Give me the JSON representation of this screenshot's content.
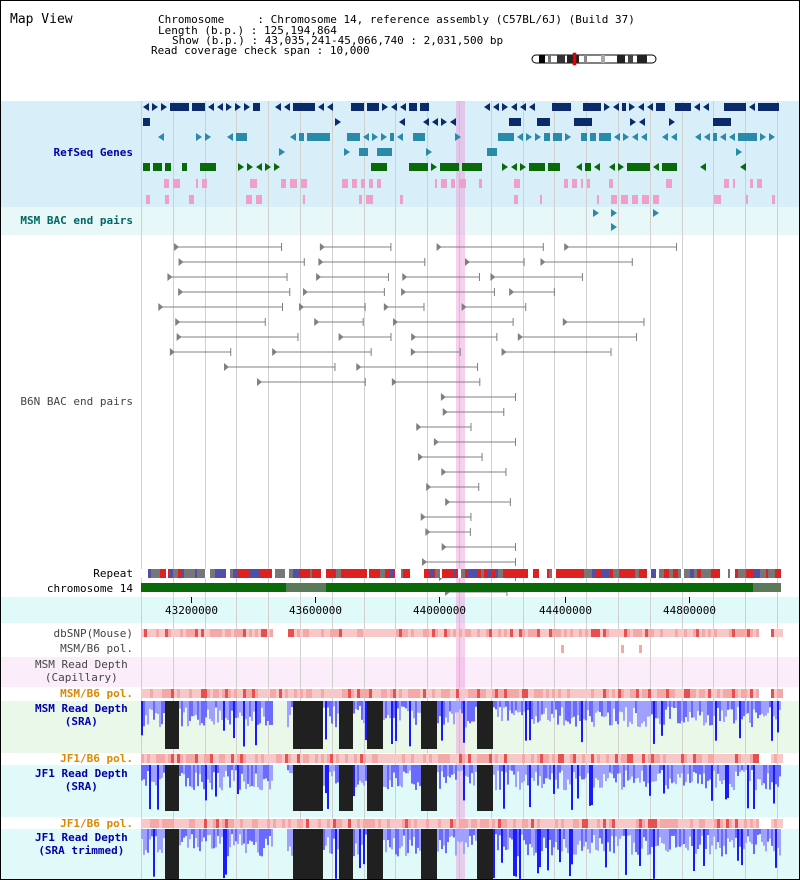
{
  "map_title": "Map View",
  "info": {
    "chromosome_label": "Chromosome",
    "chromosome_value": "Chromosome 14, reference assembly (C57BL/6J) (Build 37)",
    "length_label": "Length (b.p.)",
    "length_value": "125,194,864",
    "show_label": "Show (b.p.)",
    "show_value": "43,035,241-45,066,740 : 2,031,500 bp",
    "span_label": "Read coverage check span",
    "span_value": "10,000"
  },
  "tracks": {
    "refseq": "RefSeq Genes",
    "msm_bac": "MSM BAC end pairs",
    "b6n_bac": "B6N BAC end pairs",
    "repeat": "Repeat",
    "chromosome": "chromosome 14",
    "dbsnp": "dbSNP(Mouse)",
    "msm_b6_pol_1": "MSM/B6 pol.",
    "msm_depth_cap_1": "MSM Read Depth",
    "msm_depth_cap_2": "(Capillary)",
    "msm_b6_pol_2": "MSM/B6 pol.",
    "msm_depth_sra_1": "MSM Read Depth",
    "msm_depth_sra_2": "(SRA)",
    "jf1_b6_pol_1": "JF1/B6 pol.",
    "jf1_depth_sra_1": "JF1 Read Depth",
    "jf1_depth_sra_2": "(SRA)",
    "jf1_b6_pol_2": "JF1/B6 pol.",
    "jf1_depth_trim_1": "JF1 Read Depth",
    "jf1_depth_trim_2": "(SRA trimmed)"
  },
  "axis": {
    "ticks": [
      {
        "label": "43200000",
        "x": 43200000
      },
      {
        "label": "43600000",
        "x": 43600000
      },
      {
        "label": "44000000",
        "x": 44000000
      },
      {
        "label": "44400000",
        "x": 44400000
      },
      {
        "label": "44800000",
        "x": 44800000
      }
    ]
  },
  "colors": {
    "refseq_bg": "#d8eef8",
    "msm_bac_bg": "#e8f8f8",
    "gene_dark": "#0a2a6a",
    "gene_teal": "#2a8aaa",
    "gene_green": "#0a6a0a",
    "gene_pink": "#f0a0c8",
    "bac_gray": "#808080",
    "chrom_green": "#0a6a0a",
    "depth_blue": "#1a1aff",
    "depth_black": "#202020",
    "label_blue": "#0000aa",
    "label_teal": "#006666",
    "label_orange": "#dd8800"
  }
}
